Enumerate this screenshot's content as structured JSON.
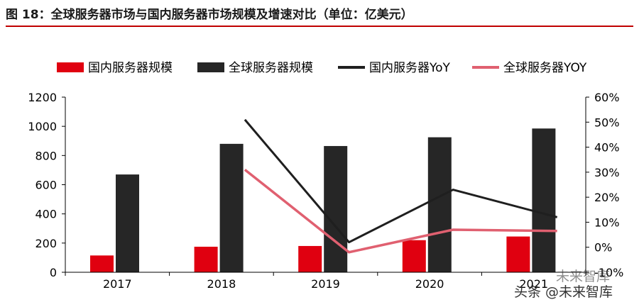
{
  "figure_title": "图 18：全球服务器市场与国内服务器市场规模及增速对比（单位：亿美元）",
  "watermark": {
    "line1": "未来智库",
    "line2": "头条 @未来智库"
  },
  "colors": {
    "domestic_bar": "#e00010",
    "global_bar": "#262626",
    "domestic_yoy": "#1f1f1f",
    "global_yoy": "#e06070",
    "title_rule": "#c00000"
  },
  "chart_data": {
    "type": "bar",
    "categories": [
      "2017",
      "2018",
      "2019",
      "2020",
      "2021"
    ],
    "y_left": {
      "min": 0,
      "max": 1200,
      "ticks": [
        0,
        200,
        400,
        600,
        800,
        1000,
        1200
      ]
    },
    "y_right": {
      "min": -10,
      "max": 60,
      "ticks": [
        -10,
        0,
        10,
        20,
        30,
        40,
        50,
        60
      ],
      "format": "percent"
    },
    "legend_position": "top",
    "grid": false,
    "series": [
      {
        "name": "国内服务器规模",
        "kind": "bar",
        "axis": "left",
        "values": [
          115,
          175,
          180,
          220,
          245
        ]
      },
      {
        "name": "全球服务器规模",
        "kind": "bar",
        "axis": "left",
        "values": [
          670,
          880,
          865,
          925,
          985
        ]
      },
      {
        "name": "国内服务器YoY",
        "kind": "line",
        "axis": "right",
        "values": [
          null,
          51,
          2,
          23,
          12
        ]
      },
      {
        "name": "全球服务器YOY",
        "kind": "line",
        "axis": "right",
        "values": [
          null,
          31,
          -2,
          7,
          6.5
        ]
      }
    ]
  }
}
